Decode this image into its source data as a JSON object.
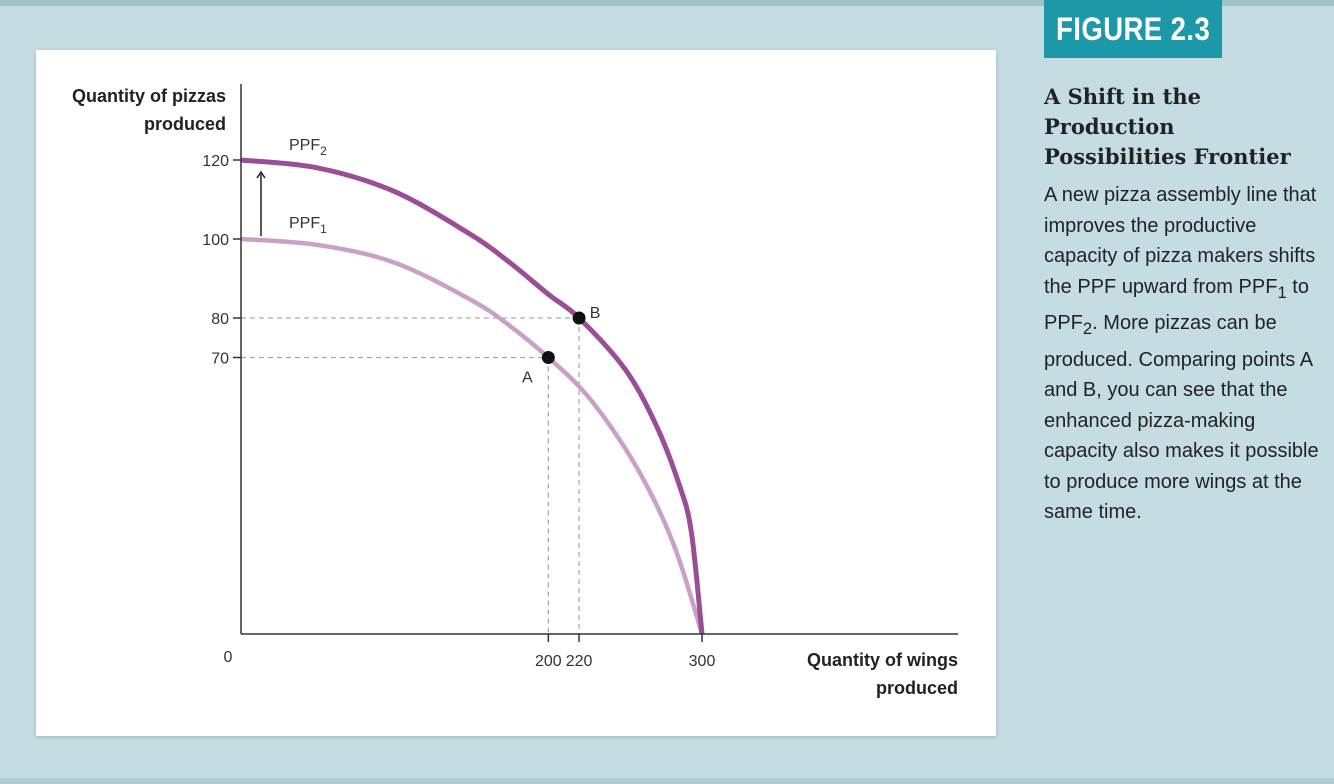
{
  "figure": {
    "label": "FIGURE 2.3",
    "title": "A Shift in the Production Possibilities Frontier",
    "description_before_ppf1": "A new pizza assembly line that improves the productive capacity of pizza makers shifts the PPF upward from ",
    "description_between": " to ",
    "description_after_ppf2": ". More pizzas can be produced. Comparing points A and B, you can see that the enhanced pizza-making capacity also makes it possible to produce more wings at the same time.",
    "ppf_base": "PPF",
    "ppf1_sub": "1",
    "ppf2_sub": "2"
  },
  "chart_data": {
    "type": "line",
    "ylabel": "Quantity of pizzas produced",
    "xlabel": "Quantity of wings produced",
    "origin_label": "0",
    "xlim": [
      0,
      300
    ],
    "ylim": [
      0,
      120
    ],
    "x_ticks": [
      200,
      220,
      300
    ],
    "y_ticks": [
      120,
      100,
      80,
      70
    ],
    "series": [
      {
        "name": "PPF1",
        "label_base": "PPF",
        "label_sub": "1",
        "color": "#c9a0c6",
        "x": [
          0,
          50,
          100,
          150,
          175,
          200,
          225,
          250,
          270,
          285,
          300
        ],
        "y": [
          100,
          98.5,
          94,
          84.5,
          78,
          70,
          60.5,
          47,
          33,
          19,
          0
        ]
      },
      {
        "name": "PPF2",
        "label_base": "PPF",
        "label_sub": "2",
        "color": "#9a4e96",
        "x": [
          0,
          50,
          100,
          150,
          175,
          200,
          220,
          250,
          270,
          285,
          293,
          300
        ],
        "y": [
          120,
          118,
          112,
          101,
          94,
          86,
          80,
          67,
          53,
          38,
          26,
          0
        ]
      }
    ],
    "points": [
      {
        "label": "A",
        "x": 200,
        "y": 70
      },
      {
        "label": "B",
        "x": 220,
        "y": 80
      }
    ],
    "shift_arrow": {
      "x": 13,
      "from_y": 100,
      "to_y": 120
    },
    "guide_color": "#aaaaaa"
  }
}
